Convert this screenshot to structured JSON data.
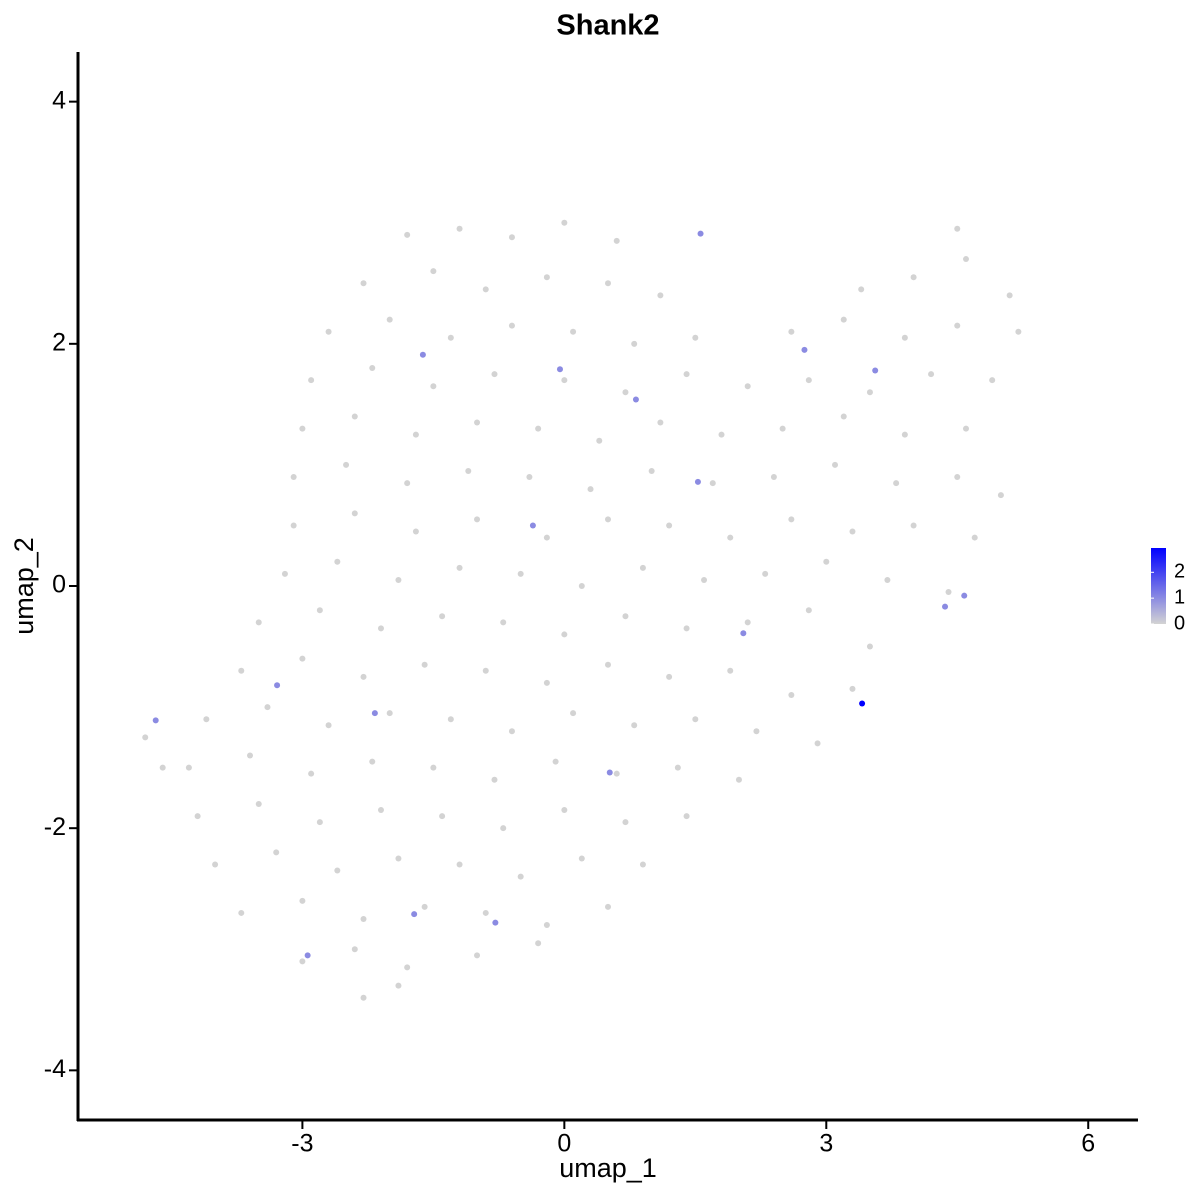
{
  "chart_data": {
    "type": "scatter",
    "title": "Shank2",
    "x_label": "umap_1",
    "y_label": "umap_2",
    "xlim": [
      -5.57,
      6.57
    ],
    "ylim": [
      -4.41,
      4.41
    ],
    "xticks": [
      -3,
      0,
      3,
      6
    ],
    "yticks": [
      -4,
      -2,
      0,
      2,
      4
    ],
    "colorbar": {
      "low": "#d3d3d3",
      "high": "#0000ff",
      "lim": [
        0,
        2.94
      ],
      "ticks": [
        0,
        1,
        2
      ]
    },
    "points": [
      [
        -1.8,
        2.9,
        0
      ],
      [
        -1.2,
        2.95,
        0
      ],
      [
        -0.6,
        2.88,
        0
      ],
      [
        0,
        3.0,
        0
      ],
      [
        0.6,
        2.85,
        0
      ],
      [
        4.5,
        2.95,
        0
      ],
      [
        -2.3,
        2.5,
        0
      ],
      [
        -1.5,
        2.6,
        0
      ],
      [
        -0.9,
        2.45,
        0
      ],
      [
        -0.2,
        2.55,
        0
      ],
      [
        0.5,
        2.5,
        0
      ],
      [
        1.1,
        2.4,
        0
      ],
      [
        3.4,
        2.45,
        0
      ],
      [
        4.0,
        2.55,
        0
      ],
      [
        4.6,
        2.7,
        0
      ],
      [
        5.1,
        2.4,
        0
      ],
      [
        -2.7,
        2.1,
        0
      ],
      [
        -2.0,
        2.2,
        0
      ],
      [
        -1.3,
        2.05,
        0
      ],
      [
        -0.6,
        2.15,
        0
      ],
      [
        0.1,
        2.1,
        0
      ],
      [
        0.8,
        2.0,
        0
      ],
      [
        1.5,
        2.05,
        0
      ],
      [
        2.6,
        2.1,
        0
      ],
      [
        3.2,
        2.2,
        0
      ],
      [
        3.9,
        2.05,
        0
      ],
      [
        4.5,
        2.15,
        0
      ],
      [
        5.2,
        2.1,
        0
      ],
      [
        -2.9,
        1.7,
        0
      ],
      [
        -2.2,
        1.8,
        0
      ],
      [
        -1.5,
        1.65,
        0
      ],
      [
        -0.8,
        1.75,
        0
      ],
      [
        0.0,
        1.7,
        0
      ],
      [
        0.7,
        1.6,
        0
      ],
      [
        1.4,
        1.75,
        0
      ],
      [
        2.1,
        1.65,
        0
      ],
      [
        2.8,
        1.7,
        0
      ],
      [
        3.5,
        1.6,
        0
      ],
      [
        4.2,
        1.75,
        0
      ],
      [
        4.9,
        1.7,
        0
      ],
      [
        -3.0,
        1.3,
        0
      ],
      [
        -2.4,
        1.4,
        0
      ],
      [
        -1.7,
        1.25,
        0
      ],
      [
        -1.0,
        1.35,
        0
      ],
      [
        -0.3,
        1.3,
        0
      ],
      [
        0.4,
        1.2,
        0
      ],
      [
        1.1,
        1.35,
        0
      ],
      [
        1.8,
        1.25,
        0
      ],
      [
        2.5,
        1.3,
        0
      ],
      [
        3.2,
        1.4,
        0
      ],
      [
        3.9,
        1.25,
        0
      ],
      [
        4.6,
        1.3,
        0
      ],
      [
        -3.1,
        0.9,
        0
      ],
      [
        -2.5,
        1.0,
        0
      ],
      [
        -1.8,
        0.85,
        0
      ],
      [
        -1.1,
        0.95,
        0
      ],
      [
        -0.4,
        0.9,
        0
      ],
      [
        0.3,
        0.8,
        0
      ],
      [
        1.0,
        0.95,
        0
      ],
      [
        1.7,
        0.85,
        0
      ],
      [
        2.4,
        0.9,
        0
      ],
      [
        3.1,
        1.0,
        0
      ],
      [
        3.8,
        0.85,
        0
      ],
      [
        4.5,
        0.9,
        0
      ],
      [
        5.0,
        0.75,
        0
      ],
      [
        -3.1,
        0.5,
        0
      ],
      [
        -2.4,
        0.6,
        0
      ],
      [
        -1.7,
        0.45,
        0
      ],
      [
        -1.0,
        0.55,
        0
      ],
      [
        -0.2,
        0.4,
        0
      ],
      [
        0.5,
        0.55,
        0
      ],
      [
        1.2,
        0.5,
        0
      ],
      [
        1.9,
        0.4,
        0
      ],
      [
        2.6,
        0.55,
        0
      ],
      [
        3.3,
        0.45,
        0
      ],
      [
        4.0,
        0.5,
        0
      ],
      [
        4.7,
        0.4,
        0
      ],
      [
        -3.2,
        0.1,
        0
      ],
      [
        -2.6,
        0.2,
        0
      ],
      [
        -1.9,
        0.05,
        0
      ],
      [
        -1.2,
        0.15,
        0
      ],
      [
        -0.5,
        0.1,
        0
      ],
      [
        0.2,
        0.0,
        0
      ],
      [
        0.9,
        0.15,
        0
      ],
      [
        1.6,
        0.05,
        0
      ],
      [
        2.3,
        0.1,
        0
      ],
      [
        3.0,
        0.2,
        0
      ],
      [
        3.7,
        0.05,
        0
      ],
      [
        4.4,
        -0.05,
        0
      ],
      [
        -3.5,
        -0.3,
        0
      ],
      [
        -2.8,
        -0.2,
        0
      ],
      [
        -2.1,
        -0.35,
        0
      ],
      [
        -1.4,
        -0.25,
        0
      ],
      [
        -0.7,
        -0.3,
        0
      ],
      [
        0.0,
        -0.4,
        0
      ],
      [
        0.7,
        -0.25,
        0
      ],
      [
        1.4,
        -0.35,
        0
      ],
      [
        2.1,
        -0.3,
        0
      ],
      [
        2.8,
        -0.2,
        0
      ],
      [
        3.5,
        -0.5,
        0
      ],
      [
        -3.7,
        -0.7,
        0
      ],
      [
        -3.0,
        -0.6,
        0
      ],
      [
        -2.3,
        -0.75,
        0
      ],
      [
        -1.6,
        -0.65,
        0
      ],
      [
        -0.9,
        -0.7,
        0
      ],
      [
        -0.2,
        -0.8,
        0
      ],
      [
        0.5,
        -0.65,
        0
      ],
      [
        1.2,
        -0.75,
        0
      ],
      [
        1.9,
        -0.7,
        0
      ],
      [
        2.6,
        -0.9,
        0
      ],
      [
        3.3,
        -0.85,
        0
      ],
      [
        -4.1,
        -1.1,
        0
      ],
      [
        -3.4,
        -1.0,
        0
      ],
      [
        -2.7,
        -1.15,
        0
      ],
      [
        -2.0,
        -1.05,
        0
      ],
      [
        -1.3,
        -1.1,
        0
      ],
      [
        -0.6,
        -1.2,
        0
      ],
      [
        0.1,
        -1.05,
        0
      ],
      [
        0.8,
        -1.15,
        0
      ],
      [
        1.5,
        -1.1,
        0
      ],
      [
        2.2,
        -1.2,
        0
      ],
      [
        2.9,
        -1.3,
        0
      ],
      [
        -4.3,
        -1.5,
        0
      ],
      [
        -3.6,
        -1.4,
        0
      ],
      [
        -2.9,
        -1.55,
        0
      ],
      [
        -2.2,
        -1.45,
        0
      ],
      [
        -1.5,
        -1.5,
        0
      ],
      [
        -0.8,
        -1.6,
        0
      ],
      [
        -0.1,
        -1.45,
        0
      ],
      [
        0.6,
        -1.55,
        0
      ],
      [
        1.3,
        -1.5,
        0
      ],
      [
        2.0,
        -1.6,
        0
      ],
      [
        -4.2,
        -1.9,
        0
      ],
      [
        -3.5,
        -1.8,
        0
      ],
      [
        -2.8,
        -1.95,
        0
      ],
      [
        -2.1,
        -1.85,
        0
      ],
      [
        -1.4,
        -1.9,
        0
      ],
      [
        -0.7,
        -2.0,
        0
      ],
      [
        0.0,
        -1.85,
        0
      ],
      [
        0.7,
        -1.95,
        0
      ],
      [
        1.4,
        -1.9,
        0
      ],
      [
        -4.0,
        -2.3,
        0
      ],
      [
        -3.3,
        -2.2,
        0
      ],
      [
        -2.6,
        -2.35,
        0
      ],
      [
        -1.9,
        -2.25,
        0
      ],
      [
        -1.2,
        -2.3,
        0
      ],
      [
        -0.5,
        -2.4,
        0
      ],
      [
        0.2,
        -2.25,
        0
      ],
      [
        0.9,
        -2.3,
        0
      ],
      [
        -3.7,
        -2.7,
        0
      ],
      [
        -3.0,
        -2.6,
        0
      ],
      [
        -2.3,
        -2.75,
        0
      ],
      [
        -1.6,
        -2.65,
        0
      ],
      [
        -0.9,
        -2.7,
        0
      ],
      [
        -0.2,
        -2.8,
        0
      ],
      [
        0.5,
        -2.65,
        0
      ],
      [
        -3.0,
        -3.1,
        0
      ],
      [
        -2.4,
        -3.0,
        0
      ],
      [
        -1.8,
        -3.15,
        0
      ],
      [
        -1.0,
        -3.05,
        0
      ],
      [
        -0.3,
        -2.95,
        0
      ],
      [
        -2.3,
        -3.4,
        0
      ],
      [
        -1.9,
        -3.3,
        0
      ],
      [
        -4.8,
        -1.25,
        0
      ],
      [
        -4.6,
        -1.5,
        0
      ],
      [
        -4.68,
        -1.11,
        1
      ],
      [
        1.56,
        2.91,
        1
      ],
      [
        -0.05,
        1.79,
        1
      ],
      [
        1.53,
        0.86,
        1
      ],
      [
        2.05,
        -0.39,
        1
      ],
      [
        3.41,
        -0.97,
        2.94
      ],
      [
        4.58,
        -0.08,
        1
      ],
      [
        3.56,
        1.78,
        1
      ],
      [
        -3.29,
        -0.82,
        1
      ],
      [
        -2.94,
        -3.05,
        1
      ],
      [
        -0.79,
        -2.78,
        1
      ],
      [
        -0.36,
        0.5,
        1
      ],
      [
        2.75,
        1.95,
        1
      ],
      [
        -1.62,
        1.91,
        1
      ],
      [
        0.82,
        1.54,
        1
      ],
      [
        0.52,
        -1.54,
        1
      ],
      [
        4.36,
        -0.17,
        1
      ],
      [
        -2.17,
        -1.05,
        1
      ],
      [
        -1.72,
        -2.71,
        1
      ]
    ]
  }
}
